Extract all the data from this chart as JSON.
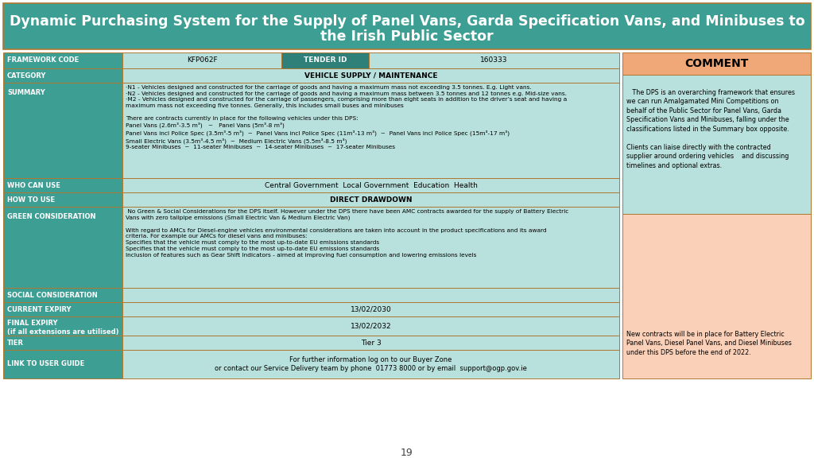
{
  "title_line1": "Dynamic Purchasing System for the Supply of Panel Vans, Garda Specification Vans, and Minibuses to",
  "title_line2": "the Irish Public Sector",
  "title_bg": "#3D9E93",
  "title_color": "#FFFFFF",
  "header_bg": "#3D9E93",
  "label_bg": "#3D9E93",
  "label_color": "#FFFFFF",
  "cell_bg_light": "#B8E0DC",
  "cell_bg_mid": "#A0D4CF",
  "tender_header_bg": "#2E8078",
  "comment_header_bg": "#F0A878",
  "comment_body_bg": "#FAD0B8",
  "border_color": "#B07830",
  "page_bg": "#FFFFFF",
  "framework_code": "KFP062F",
  "tender_id_label": "TENDER ID",
  "tender_id_value": "160333",
  "category": "VEHICLE SUPPLY / MAINTENANCE",
  "summary_text": "·N1 - Vehicles designed and constructed for the carriage of goods and having a maximum mass not exceeding 3.5 tonnes. E.g. Light vans.\n·N2 - Vehicles designed and constructed for the carriage of goods and having a maximum mass between 3.5 tonnes and 12 tonnes e.g. Mid-size vans.\n·M2 - Vehicles designed and constructed for the carriage of passengers, comprising more than eight seats in addition to the driver’s seat and having a\nmaximum mass not exceeding five tonnes. Generally, this includes small buses and minibuses\n\nThere are contracts currently in place for the following vehicles under this DPS:\nPanel Vans (2.6m³-3.5 m³)   ~   Panel Vans (5m³-8 m³)\nPanel Vans incl Police Spec (3.5m³-5 m³)  ~  Panel Vans incl Police Spec (11m³-13 m³)  ~  Panel Vans incl Police Spec (15m³-17 m³)\nSmall Electric Vans (3.5m³-4.5 m³)  ~  Medium Electric Vans (5.5m³-8.5 m³)\n9-seater Minibuses  ~  11-seater Minibuses  ~  14-seater Minibuses  ~  17-seater Minibuses",
  "who_can_use": "Central Government  Local Government  Education  Health",
  "how_to_use": "DIRECT DRAWDOWN",
  "green_text": " No Green & Social Considerations for the DPS itself. However under the DPS there have been AMC contracts awarded for the supply of Battery Electric\nVans with zero tailpipe emissions (Small Electric Van & Medium Electric Van)\n\nWith regard to AMCs for Diesel-engine vehicles environmental considerations are taken into account in the product specifications and its award\ncriteria. For example our AMCs for diesel vans and minibuses:\nSpecifies that the vehicle must comply to the most up-to-date EU emissions standards\nSpecifies that the vehicle must comply to the most up-to-date EU emissions standards\nInclusion of features such as Gear Shift Indicators - aimed at improving fuel consumption and lowering emissions levels",
  "current_expiry": "13/02/2030",
  "final_expiry": "13/02/2032",
  "tier": "Tier 3",
  "link_text": "For further information log on to our Buyer Zone\nor contact our Service Delivery team by phone  01773 8000 or by email  support@ogp.gov.ie",
  "comment_title": "COMMENT",
  "comment_text1": "   The DPS is an overarching framework that ensures\nwe can run Amalgamated Mini Competitions on\nbehalf of the Public Sector for Panel Vans, Garda\nSpecification Vans and Minibuses, falling under the\nclassifications listed in the Summary box opposite.\n\nClients can liaise directly with the contracted\nsupplier around ordering vehicles    and discussing\ntimelines and optional extras.",
  "comment_text2": "New contracts will be in place for Battery Electric\nPanel Vans, Diesel Panel Vans, and Diesel Minibuses\nunder this DPS before the end of 2022.",
  "page_number": "19"
}
